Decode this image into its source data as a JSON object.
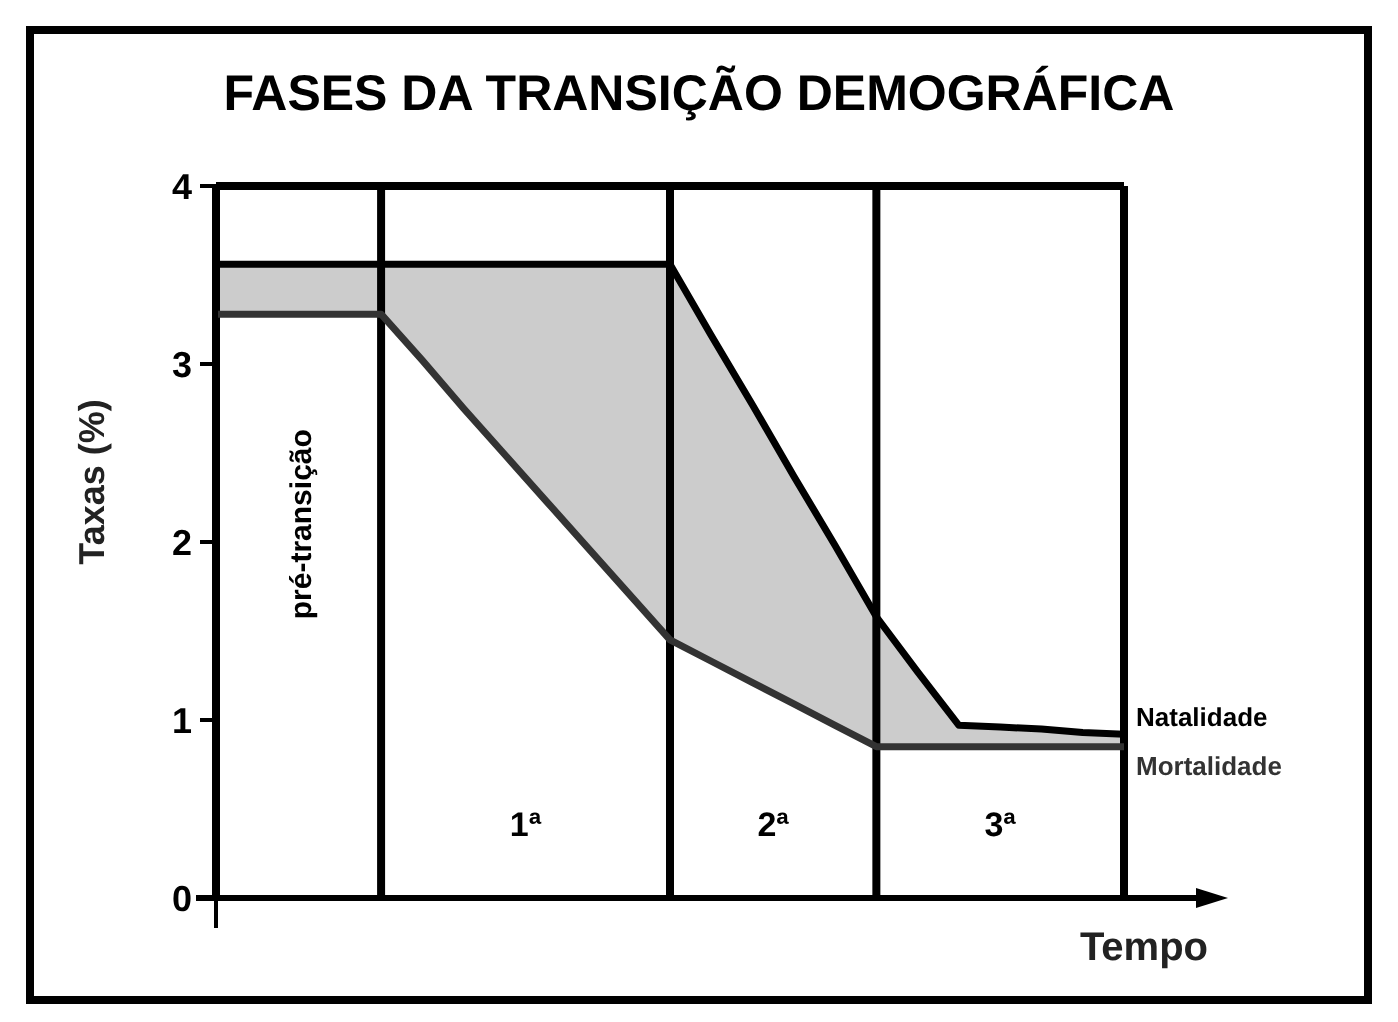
{
  "chart_data": {
    "type": "line",
    "title": "FASES DA TRANSIÇÃO DEMOGRÁFICA",
    "xlabel": "Tempo",
    "ylabel": "Taxas (%)",
    "categories": [
      null,
      null,
      null,
      null,
      null,
      null,
      null,
      null,
      null,
      null,
      null,
      null,
      null,
      null,
      null,
      null,
      null,
      null,
      null,
      null,
      null,
      null,
      null
    ],
    "ylim": [
      0,
      4
    ],
    "yticks": [
      0,
      1,
      2,
      3,
      4
    ],
    "legend": false,
    "marker": "none",
    "line_style": "solid",
    "series": [
      {
        "name": "Natalidade",
        "color": "#000000",
        "values": [
          3.56,
          3.56,
          3.56,
          3.56,
          3.56,
          3.56,
          3.56,
          3.56,
          3.56,
          3.56,
          3.56,
          3.56,
          3.16,
          2.77,
          2.37,
          1.98,
          1.58,
          1.27,
          0.97,
          0.96,
          0.95,
          0.93,
          0.92
        ],
        "lower": [
          3.28,
          3.28,
          3.28,
          3.28,
          3.28,
          3.02,
          2.75,
          2.49,
          2.23,
          1.97,
          1.71,
          1.45,
          1.33,
          1.21,
          1.09,
          0.97,
          0.85,
          0.85,
          0.85,
          0.85,
          0.85,
          0.85,
          0.85
        ],
        "upper": [
          3.56,
          3.56,
          3.56,
          3.56,
          3.56,
          3.56,
          3.56,
          3.56,
          3.56,
          3.56,
          3.56,
          3.56,
          3.16,
          2.77,
          2.37,
          1.98,
          1.58,
          1.27,
          0.97,
          0.96,
          0.95,
          0.93,
          0.92
        ]
      },
      {
        "name": "Mortalidade",
        "color": "#333333",
        "values": [
          3.28,
          3.28,
          3.28,
          3.28,
          3.28,
          3.02,
          2.75,
          2.49,
          2.23,
          1.97,
          1.71,
          1.45,
          1.33,
          1.21,
          1.09,
          0.97,
          0.85,
          0.85,
          0.85,
          0.85,
          0.85,
          0.85,
          0.85
        ]
      }
    ],
    "grid": "x",
    "annotations": [
      "pré-transição",
      "1ª",
      "2ª",
      "3ª"
    ]
  }
}
